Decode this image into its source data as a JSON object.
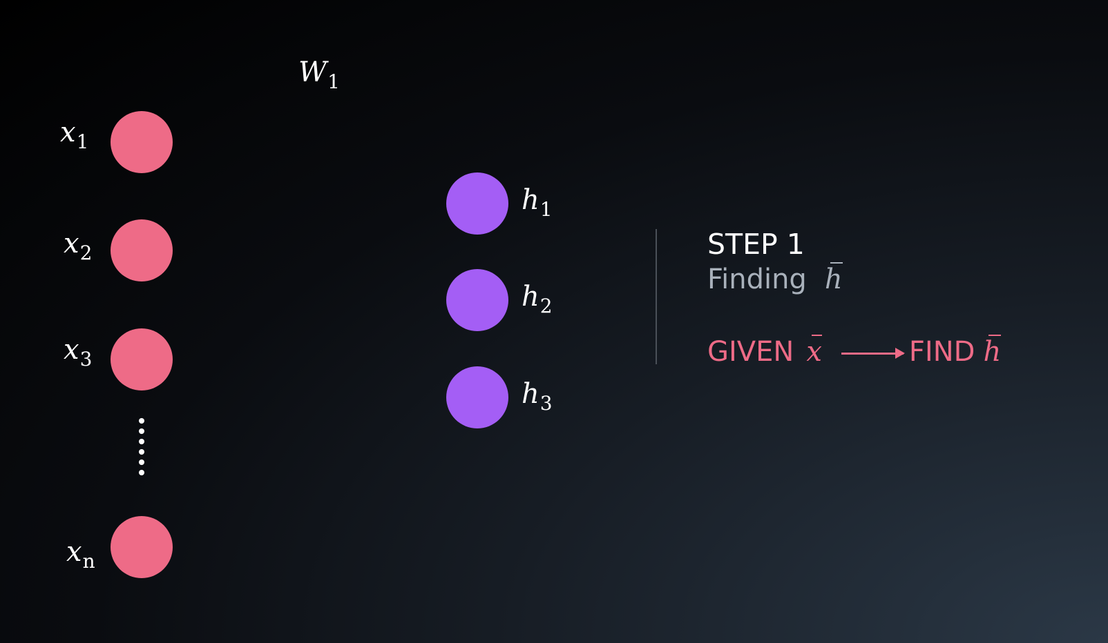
{
  "colors": {
    "input_node": "#ee6b87",
    "hidden_node": "#a45ef5",
    "accent": "#ee6b87"
  },
  "weights_label": {
    "base": "W",
    "sub": "1"
  },
  "inputs": [
    {
      "base": "x",
      "sub": "1"
    },
    {
      "base": "x",
      "sub": "2"
    },
    {
      "base": "x",
      "sub": "3"
    },
    {
      "base": "x",
      "sub": "n"
    }
  ],
  "hidden": [
    {
      "base": "h",
      "sub": "1"
    },
    {
      "base": "h",
      "sub": "2"
    },
    {
      "base": "h",
      "sub": "3"
    }
  ],
  "step": {
    "title": "STEP 1",
    "subtitle": "Finding",
    "subtitle_symbol": "h",
    "given_label": "GIVEN",
    "given_symbol": "x",
    "find_label": "FIND",
    "find_symbol": "h"
  }
}
